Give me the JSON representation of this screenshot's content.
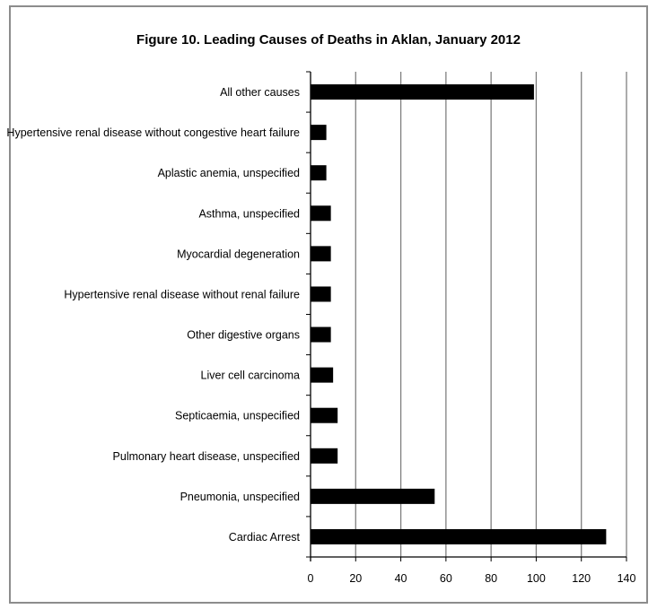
{
  "chart_data": {
    "type": "bar",
    "orientation": "horizontal",
    "title": "Figure 10. Leading Causes of Deaths in Aklan, January 2012",
    "xlabel": "",
    "ylabel": "",
    "xlim": [
      0,
      140
    ],
    "x_ticks": [
      0,
      20,
      40,
      60,
      80,
      100,
      120,
      140
    ],
    "grid": "vertical",
    "legend": "none",
    "bar_color": "#000000",
    "grid_color": "#7f7f7f",
    "categories": [
      "All other causes",
      "Hypertensive renal disease without congestive heart failure",
      "Aplastic anemia, unspecified",
      "Asthma, unspecified",
      "Myocardial degeneration",
      "Hypertensive renal disease without renal failure",
      "Other digestive organs",
      "Liver cell carcinoma",
      "Septicaemia, unspecified",
      "Pulmonary heart disease, unspecified",
      "Pneumonia, unspecified",
      "Cardiac Arrest"
    ],
    "values": [
      99,
      7,
      7,
      9,
      9,
      9,
      9,
      10,
      12,
      12,
      55,
      131
    ]
  }
}
